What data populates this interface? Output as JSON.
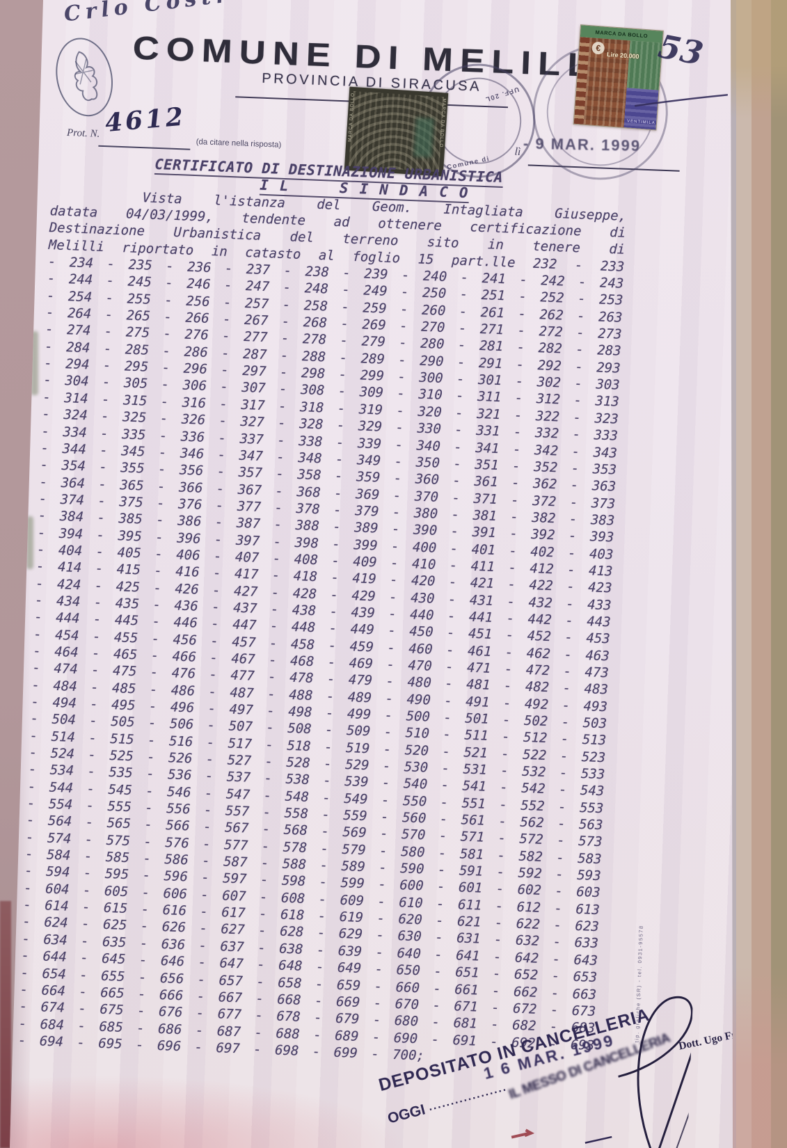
{
  "document": {
    "corner_note": "Crlo Costr",
    "corner_number": "53",
    "comune_title": "COMUNE DI MELILLI",
    "provincia": "PROVINCIA DI SIRACUSA",
    "prot_label": "Prot. N.",
    "prot_number": "4612",
    "prot_note": "(da citare nella risposta)",
    "date_label": "lì",
    "arrival_date_stamp": "- 9 MAR. 1999",
    "cert_title": "CERTIFICATO DI DESTINAZIONE URBANISTICA",
    "cert_subtitle": "I L     S I N D A C O",
    "body_lines": [
      "Vista l'istanza del Geom. Intagliata Giuseppe,",
      "datata 04/03/1999, tendente ad ottenere certificazione di",
      "Destinazione Urbanistica del terreno sito in tenere di",
      "Melilli riportato in catasto al foglio 15 part.lle 232 - 233"
    ],
    "parcel_lines": [
      "- 234 - 235 - 236 - 237 - 238 - 239 - 240 - 241 - 242 - 243",
      "- 244 - 245 - 246 - 247 - 248 - 249 - 250 - 251 - 252 - 253",
      "- 254 - 255 - 256 - 257 - 258 - 259 - 260 - 261 - 262 - 263",
      "- 264 - 265 - 266 - 267 - 268 - 269 - 270 - 271 - 272 - 273",
      "- 274 - 275 - 276 - 277 - 278 - 279 - 280 - 281 - 282 - 283",
      "- 284 - 285 - 286 - 287 - 288 - 289 - 290 - 291 - 292 - 293",
      "- 294 - 295 - 296 - 297 - 298 - 299 - 300 - 301 - 302 - 303",
      "- 304 - 305 - 306 - 307 - 308 - 309 - 310 - 311 - 312 - 313",
      "- 314 - 315 - 316 - 317 - 318 - 319 - 320 - 321 - 322 - 323",
      "- 324 - 325 - 326 - 327 - 328 - 329 - 330 - 331 - 332 - 333",
      "- 334 - 335 - 336 - 337 - 338 - 339 - 340 - 341 - 342 - 343",
      "- 344 - 345 - 346 - 347 - 348 - 349 - 350 - 351 - 352 - 353",
      "- 354 - 355 - 356 - 357 - 358 - 359 - 360 - 361 - 362 - 363",
      "- 364 - 365 - 366 - 367 - 368 - 369 - 370 - 371 - 372 - 373",
      "- 374 - 375 - 376 - 377 - 378 - 379 - 380 - 381 - 382 - 383",
      "- 384 - 385 - 386 - 387 - 388 - 389 - 390 - 391 - 392 - 393",
      "- 394 - 395 - 396 - 397 - 398 - 399 - 400 - 401 - 402 - 403",
      "- 404 - 405 - 406 - 407 - 408 - 409 - 410 - 411 - 412 - 413",
      "- 414 - 415 - 416 - 417 - 418 - 419 - 420 - 421 - 422 - 423",
      "- 424 - 425 - 426 - 427 - 428 - 429 - 430 - 431 - 432 - 433",
      "- 434 - 435 - 436 - 437 - 438 - 439 - 440 - 441 - 442 - 443",
      "- 444 - 445 - 446 - 447 - 448 - 449 - 450 - 451 - 452 - 453",
      "- 454 - 455 - 456 - 457 - 458 - 459 - 460 - 461 - 462 - 463",
      "- 464 - 465 - 466 - 467 - 468 - 469 - 470 - 471 - 472 - 473",
      "- 474 - 475 - 476 - 477 - 478 - 479 - 480 - 481 - 482 - 483",
      "- 484 - 485 - 486 - 487 - 488 - 489 - 490 - 491 - 492 - 493",
      "- 494 - 495 - 496 - 497 - 498 - 499 - 500 - 501 - 502 - 503",
      "- 504 - 505 - 506 - 507 - 508 - 509 - 510 - 511 - 512 - 513",
      "- 514 - 515 - 516 - 517 - 518 - 519 - 520 - 521 - 522 - 523",
      "- 524 - 525 - 526 - 527 - 528 - 529 - 530 - 531 - 532 - 533",
      "- 534 - 535 - 536 - 537 - 538 - 539 - 540 - 541 - 542 - 543",
      "- 544 - 545 - 546 - 547 - 548 - 549 - 550 - 551 - 552 - 553",
      "- 554 - 555 - 556 - 557 - 558 - 559 - 560 - 561 - 562 - 563",
      "- 564 - 565 - 566 - 567 - 568 - 569 - 570 - 571 - 572 - 573",
      "- 574 - 575 - 576 - 577 - 578 - 579 - 580 - 581 - 582 - 583",
      "- 584 - 585 - 586 - 587 - 588 - 589 - 590 - 591 - 592 - 593",
      "- 594 - 595 - 596 - 597 - 598 - 599 - 600 - 601 - 602 - 603",
      "- 604 - 605 - 606 - 607 - 608 - 609 - 610 - 611 - 612 - 613",
      "- 614 - 615 - 616 - 617 - 618 - 619 - 620 - 621 - 622 - 623",
      "- 624 - 625 - 626 - 627 - 628 - 629 - 630 - 631 - 632 - 633",
      "- 634 - 635 - 636 - 637 - 638 - 639 - 640 - 641 - 642 - 643",
      "- 644 - 645 - 646 - 647 - 648 - 649 - 650 - 651 - 652 - 653",
      "- 654 - 655 - 656 - 657 - 658 - 659 - 660 - 661 - 662 - 663",
      "- 664 - 665 - 666 - 667 - 668 - 669 - 670 - 671 - 672 - 673",
      "- 674 - 675 - 676 - 677 - 678 - 679 - 680 - 681 - 682 - 683",
      "- 684 - 685 - 686 - 687 - 688 - 689 - 690 - 691 - 692 - 693",
      "- 694 - 695 - 696 - 697 - 698 - 699 - 700;"
    ],
    "revenue_stamp": {
      "title": "MARCA DA BOLLO",
      "euro": "€",
      "lire": "Lire 20.000",
      "denomination": "VENTIMILA"
    },
    "dark_stamp_side_text": "MARCA DA BOLLO",
    "round_stamp_fragments": [
      "UFF. 20L",
      "Comune di"
    ],
    "deposit_stamp": {
      "line1": "DEPOSITATO IN CANCELLERIA",
      "date": "1 6 MAR. 1999",
      "prefix": "OGGI",
      "dots": "..................",
      "overlap": "IL MESSO DI CANCELLERIA",
      "signature": "Dott. Ugo Franza"
    },
    "side_print": "tip. grafiche (SR) - tel. 0931-95578",
    "ink_colors": {
      "typewriter": "#4a4168",
      "stamp_violet": "#2f2852",
      "pen_blue": "#2e2a52",
      "red_mark": "#93323c"
    }
  }
}
